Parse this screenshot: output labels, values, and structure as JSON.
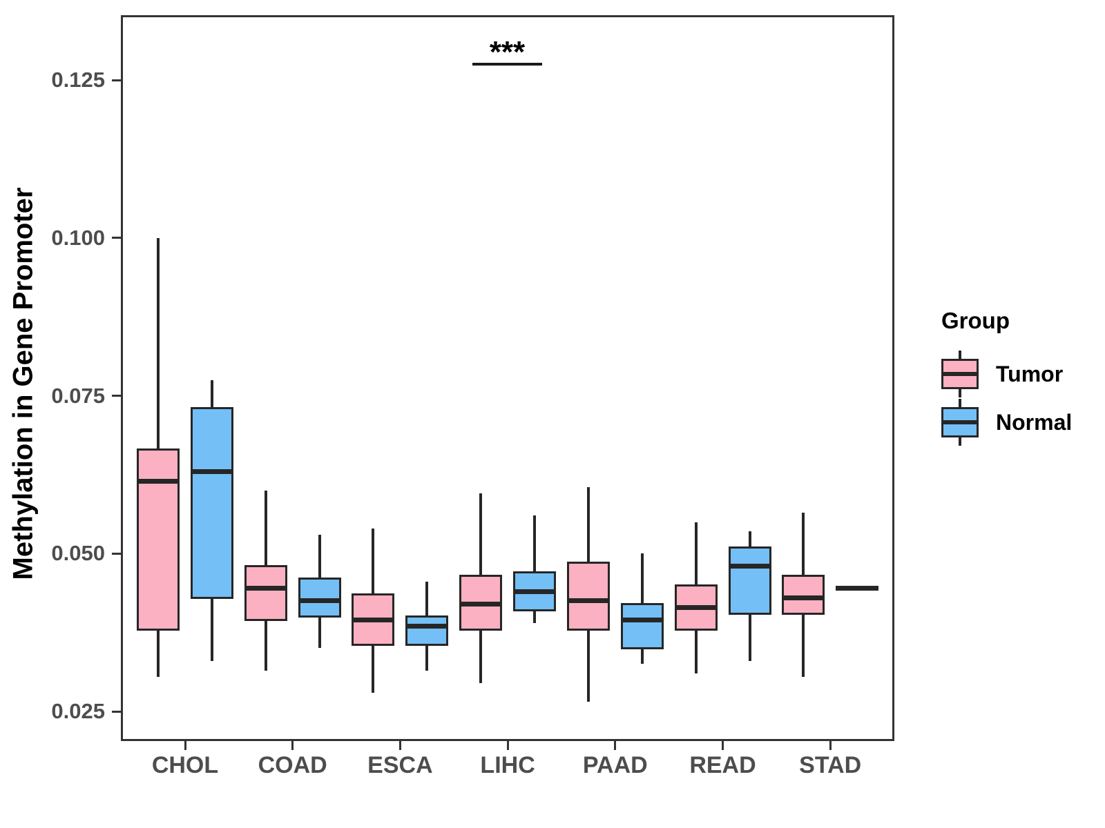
{
  "chart_data": {
    "type": "boxplot",
    "title": "",
    "ylabel": "Methylation in Gene Promoter",
    "xlabel": "",
    "legend_title": "Group",
    "legend_position": "right",
    "grid": false,
    "ylim": [
      0.021,
      0.135
    ],
    "y_ticks": {
      "values": [
        0.125,
        0.1,
        0.075,
        0.05,
        0.025
      ],
      "labels": [
        "0.125",
        "0.100",
        "0.075",
        "0.050",
        "0.025"
      ]
    },
    "categories": [
      "CHOL",
      "COAD",
      "ESCA",
      "LIHC",
      "PAAD",
      "READ",
      "STAD"
    ],
    "significance": {
      "label": "***",
      "category": "LIHC"
    },
    "colors": {
      "tumor_fill": "#FBB1C1",
      "normal_fill": "#74BFF6",
      "box_outline": "#262626",
      "panel_border": "#333333",
      "axis_text": "#4D4D4D",
      "title_text": "#000000"
    },
    "series": [
      {
        "name": "Tumor",
        "color": "#FBB1C1",
        "boxes": [
          {
            "category": "CHOL",
            "min": 0.0305,
            "q1": 0.038,
            "median": 0.0615,
            "q3": 0.0665,
            "max": 0.1
          },
          {
            "category": "COAD",
            "min": 0.0315,
            "q1": 0.0395,
            "median": 0.0445,
            "q3": 0.048,
            "max": 0.06
          },
          {
            "category": "ESCA",
            "min": 0.028,
            "q1": 0.0355,
            "median": 0.0395,
            "q3": 0.0435,
            "max": 0.054
          },
          {
            "category": "LIHC",
            "min": 0.0295,
            "q1": 0.038,
            "median": 0.042,
            "q3": 0.0465,
            "max": 0.0595
          },
          {
            "category": "PAAD",
            "min": 0.0265,
            "q1": 0.038,
            "median": 0.0425,
            "q3": 0.0485,
            "max": 0.0605
          },
          {
            "category": "READ",
            "min": 0.031,
            "q1": 0.038,
            "median": 0.0415,
            "q3": 0.045,
            "max": 0.055
          },
          {
            "category": "STAD",
            "min": 0.0305,
            "q1": 0.0405,
            "median": 0.043,
            "q3": 0.0465,
            "max": 0.0565
          }
        ]
      },
      {
        "name": "Normal",
        "color": "#74BFF6",
        "boxes": [
          {
            "category": "CHOL",
            "min": 0.033,
            "q1": 0.043,
            "median": 0.063,
            "q3": 0.073,
            "max": 0.0775
          },
          {
            "category": "COAD",
            "min": 0.035,
            "q1": 0.04,
            "median": 0.0425,
            "q3": 0.046,
            "max": 0.053
          },
          {
            "category": "ESCA",
            "min": 0.0315,
            "q1": 0.0355,
            "median": 0.0385,
            "q3": 0.04,
            "max": 0.0455
          },
          {
            "category": "LIHC",
            "min": 0.039,
            "q1": 0.041,
            "median": 0.044,
            "q3": 0.047,
            "max": 0.056
          },
          {
            "category": "PAAD",
            "min": 0.0325,
            "q1": 0.035,
            "median": 0.0395,
            "q3": 0.042,
            "max": 0.05
          },
          {
            "category": "READ",
            "min": 0.033,
            "q1": 0.0405,
            "median": 0.048,
            "q3": 0.051,
            "max": 0.0535
          },
          {
            "category": "STAD",
            "min": 0.0445,
            "q1": 0.0445,
            "median": 0.0445,
            "q3": 0.0445,
            "max": 0.0445
          }
        ]
      }
    ]
  }
}
